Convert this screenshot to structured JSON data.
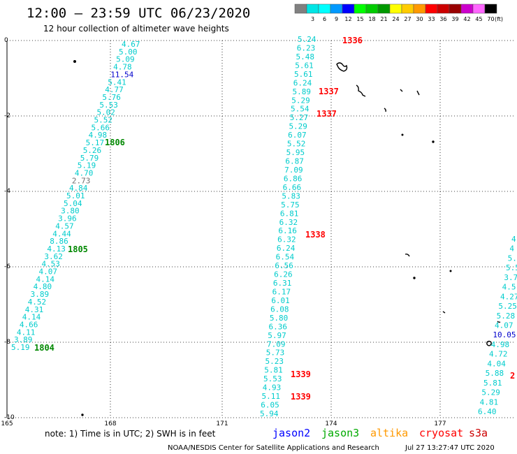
{
  "header": {
    "title": "12:00 – 23:59 UTC 06/23/2020",
    "subtitle": "12 hour collection of altimeter wave heights"
  },
  "colorbar": {
    "unit": "(ft)",
    "swatches": [
      {
        "color": "#808080",
        "label": ""
      },
      {
        "color": "#00e5e5",
        "label": "3"
      },
      {
        "color": "#00ffff",
        "label": "6"
      },
      {
        "color": "#0099ff",
        "label": "9"
      },
      {
        "color": "#0000ff",
        "label": "12"
      },
      {
        "color": "#00ff00",
        "label": "15"
      },
      {
        "color": "#00cc00",
        "label": "18"
      },
      {
        "color": "#009900",
        "label": "21"
      },
      {
        "color": "#ffff00",
        "label": "24"
      },
      {
        "color": "#ffcc00",
        "label": "27"
      },
      {
        "color": "#ff9900",
        "label": "30"
      },
      {
        "color": "#ff0000",
        "label": "33"
      },
      {
        "color": "#cc0000",
        "label": "36"
      },
      {
        "color": "#990000",
        "label": "39"
      },
      {
        "color": "#cc00cc",
        "label": "42"
      },
      {
        "color": "#ff66ff",
        "label": "45"
      },
      {
        "color": "#000000",
        "label": "70"
      }
    ]
  },
  "axes": {
    "lon_ticks": [
      "165",
      "168",
      "171",
      "174",
      "177"
    ],
    "lat_ticks": [
      "0",
      "-2",
      "-4",
      "-6",
      "-8",
      "-10"
    ]
  },
  "tracks": [
    {
      "satellite": "jason3",
      "color": "#00cccc",
      "values": [
        "4.67",
        "5.00",
        "5.09",
        "4.78",
        "11.54",
        "5.41",
        "4.77",
        "5.76",
        "5.53",
        "5.02",
        "5.52",
        "5.66",
        "4.98",
        "5.17",
        "5.26",
        "5.79",
        "5.19",
        "4.70",
        "2.73",
        "4.84",
        "5.01",
        "5.04",
        "3.80",
        "3.96",
        "4.57",
        "4.44",
        "8.86",
        "4.13",
        "3.62",
        "4.53",
        "4.07",
        "4.14",
        "4.80",
        "3.89",
        "4.52",
        "4.31",
        "4.14",
        "4.66",
        "4.11",
        "3.89",
        "5.19"
      ]
    },
    {
      "satellite": "cryosat",
      "color": "#00cccc",
      "values": [
        "5.24",
        "6.23",
        "5.48",
        "5.61",
        "5.61",
        "6.24",
        "5.89",
        "5.29",
        "5.54",
        "5.27",
        "5.29",
        "6.07",
        "5.52",
        "5.95",
        "6.87",
        "7.09",
        "6.86",
        "6.66",
        "5.83",
        "5.75",
        "6.81",
        "6.32",
        "6.16",
        "6.32",
        "6.24",
        "6.54",
        "6.56",
        "6.26",
        "6.31",
        "6.17",
        "6.01",
        "6.08",
        "5.80",
        "6.36",
        "5.97",
        "7.09",
        "5.73",
        "5.23",
        "5.81",
        "5.53",
        "4.93",
        "5.11",
        "6.05",
        "5.94"
      ]
    },
    {
      "satellite": "s3a",
      "color": "#00cccc",
      "values": [
        "4",
        "4",
        "5.",
        "5.5",
        "3.7",
        "4.5",
        "4.27",
        "5.25",
        "5.28",
        "4.07",
        "10.05",
        "4.98",
        "4.72",
        "4.04",
        "5.88",
        "5.81",
        "5.29",
        "4.81",
        "6.40"
      ]
    }
  ],
  "orbits": [
    {
      "label": "1336",
      "color": "#ff0000"
    },
    {
      "label": "1337",
      "color": "#ff0000"
    },
    {
      "label": "1337",
      "color": "#ff0000"
    },
    {
      "label": "1338",
      "color": "#ff0000"
    },
    {
      "label": "1339",
      "color": "#ff0000"
    },
    {
      "label": "1339",
      "color": "#ff0000"
    },
    {
      "label": "1806",
      "color": "#008800"
    },
    {
      "label": "1805",
      "color": "#008800"
    },
    {
      "label": "1804",
      "color": "#008800"
    },
    {
      "label": "2",
      "color": "#ff0000"
    }
  ],
  "footer": {
    "note": "note: 1) Time is in UTC; 2) SWH is in feet",
    "satellites": [
      {
        "name": "jason2",
        "color": "#0000ff"
      },
      {
        "name": "jason3",
        "color": "#00aa00"
      },
      {
        "name": "altika",
        "color": "#ff9900"
      },
      {
        "name": "cryosat",
        "color": "#ff0000"
      },
      {
        "name": "s3a",
        "color": "#cc0000"
      }
    ],
    "credit": "NOAA/NESDIS Center for Satellite Applications and Research",
    "timestamp": "Jul 27 13:27:47 UTC 2020"
  }
}
